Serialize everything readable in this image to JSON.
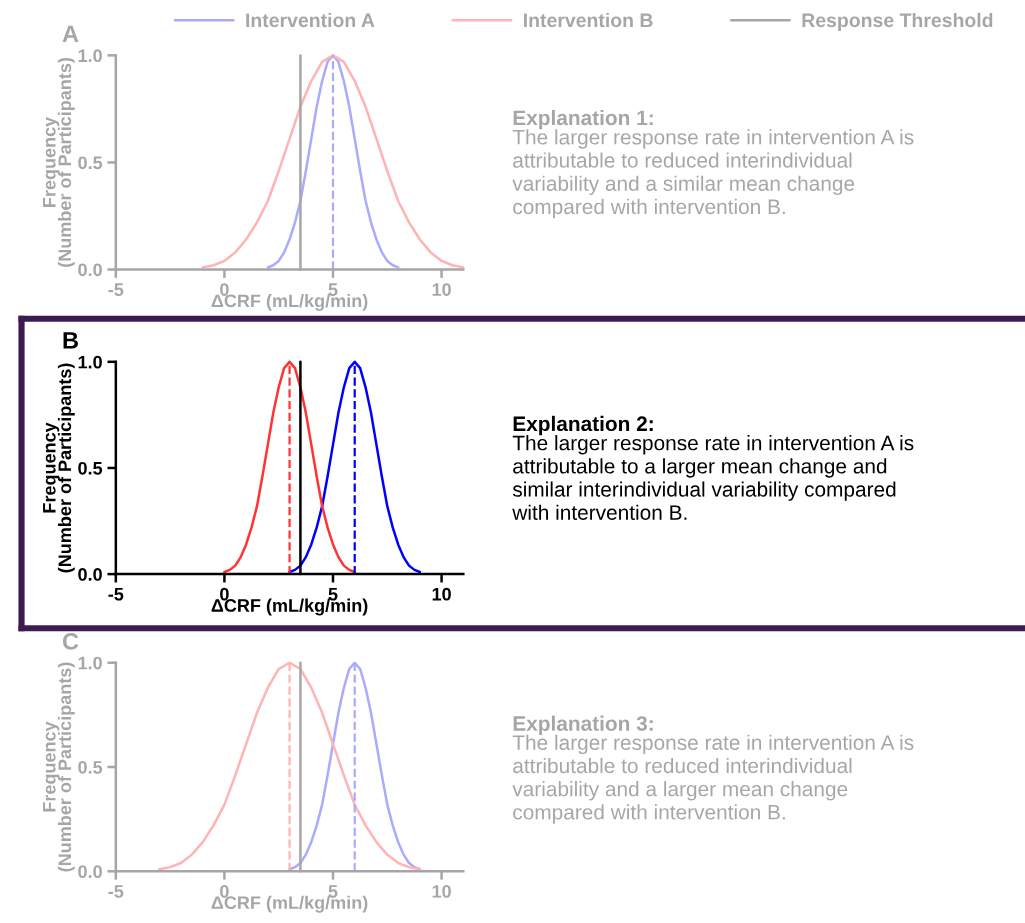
{
  "chart_data": [
    {
      "type": "line",
      "title": "A",
      "xlabel": "ΔCRF (mL/kg/min)",
      "ylabel": "Frequency\n(Number of Participants)",
      "xlim": [
        -5,
        11
      ],
      "xticks": [
        -5,
        0,
        5,
        10
      ],
      "ylim": [
        0,
        1
      ],
      "yticks": [
        {
          "value": 0,
          "label": "0.0"
        },
        {
          "value": 0.5,
          "label": "0.5"
        },
        {
          "value": 1,
          "label": "1.0"
        }
      ],
      "legend": "top",
      "series": [
        {
          "name": "Intervention A",
          "color": "#aaaaff",
          "x": [
            2,
            2.25,
            2.5,
            2.75,
            3,
            3.25,
            3.5,
            3.75,
            4,
            4.25,
            4.5,
            4.75,
            5,
            5.25,
            5.5,
            5.75,
            6,
            6.25,
            6.5,
            6.75,
            7,
            7.25,
            7.5,
            7.75,
            8
          ],
          "values": [
            0.01,
            0.02,
            0.04,
            0.08,
            0.14,
            0.22,
            0.32,
            0.46,
            0.61,
            0.76,
            0.88,
            0.97,
            1,
            0.97,
            0.88,
            0.76,
            0.61,
            0.46,
            0.32,
            0.22,
            0.14,
            0.08,
            0.04,
            0.02,
            0.01
          ]
        },
        {
          "name": "Intervention B",
          "color": "#ffb3b3",
          "x": [
            -1,
            -0.5,
            0,
            0.5,
            1,
            1.5,
            2,
            2.5,
            3,
            3.5,
            4,
            4.5,
            5,
            5.5,
            6,
            6.5,
            7,
            7.5,
            8,
            8.5,
            9,
            9.5,
            10,
            10.5,
            11
          ],
          "values": [
            0.01,
            0.02,
            0.04,
            0.08,
            0.14,
            0.22,
            0.32,
            0.46,
            0.61,
            0.76,
            0.88,
            0.97,
            1,
            0.97,
            0.88,
            0.76,
            0.61,
            0.46,
            0.32,
            0.22,
            0.14,
            0.08,
            0.04,
            0.02,
            0.01
          ]
        }
      ],
      "ref_lines": [
        {
          "axis": "x",
          "value": 3.5,
          "label": "Response Threshold",
          "color": "#a6a6a6",
          "line_style": "solid"
        },
        {
          "axis": "x",
          "value": 5,
          "color": "#aaaaff",
          "line_style": "dashed"
        }
      ],
      "annotations": [
        "Explanation 1:",
        "The larger response rate in intervention A is\nattributable to reduced interindividual\nvariability and a similar mean change\ncompared with intervention B."
      ]
    },
    {
      "type": "line",
      "title": "B",
      "xlabel": "ΔCRF (mL/kg/min)",
      "ylabel": "Frequency\n(Number of Participants)",
      "xlim": [
        -5,
        11
      ],
      "xticks": [
        -5,
        0,
        5,
        10
      ],
      "ylim": [
        0,
        1
      ],
      "yticks": [
        {
          "value": 0,
          "label": "0.0"
        },
        {
          "value": 0.5,
          "label": "0.5"
        },
        {
          "value": 1,
          "label": "1.0"
        }
      ],
      "series": [
        {
          "color": "#0000ff",
          "x": [
            3,
            3.25,
            3.5,
            3.75,
            4,
            4.25,
            4.5,
            4.75,
            5,
            5.25,
            5.5,
            5.75,
            6,
            6.25,
            6.5,
            6.75,
            7,
            7.25,
            7.5,
            7.75,
            8,
            8.25,
            8.5,
            8.75,
            9
          ],
          "values": [
            0.01,
            0.02,
            0.04,
            0.08,
            0.14,
            0.22,
            0.32,
            0.46,
            0.61,
            0.76,
            0.88,
            0.97,
            1,
            0.97,
            0.88,
            0.76,
            0.61,
            0.46,
            0.32,
            0.22,
            0.14,
            0.08,
            0.04,
            0.02,
            0.01
          ]
        },
        {
          "color": "#ff3333",
          "x": [
            0,
            0.25,
            0.5,
            0.75,
            1,
            1.25,
            1.5,
            1.75,
            2,
            2.25,
            2.5,
            2.75,
            3,
            3.25,
            3.5,
            3.75,
            4,
            4.25,
            4.5,
            4.75,
            5,
            5.25,
            5.5,
            5.75,
            6
          ],
          "values": [
            0.01,
            0.02,
            0.04,
            0.08,
            0.14,
            0.22,
            0.32,
            0.46,
            0.61,
            0.76,
            0.88,
            0.97,
            1,
            0.97,
            0.88,
            0.76,
            0.61,
            0.46,
            0.32,
            0.22,
            0.14,
            0.08,
            0.04,
            0.02,
            0.01
          ]
        }
      ],
      "ref_lines": [
        {
          "axis": "x",
          "value": 3.5,
          "color": "#000000",
          "line_style": "solid"
        },
        {
          "axis": "x",
          "value": 6,
          "color": "#0000ff",
          "line_style": "dashed"
        },
        {
          "axis": "x",
          "value": 3,
          "color": "#ff3333",
          "line_style": "dashed"
        }
      ],
      "annotations": [
        "Explanation 2:",
        "The larger response rate in intervention A is\nattributable to a larger mean change and\nsimilar interindividual variability compared\nwith intervention B."
      ]
    },
    {
      "type": "line",
      "title": "C",
      "xlabel": "ΔCRF (mL/kg/min)",
      "ylabel": "Frequency\n(Number of Participants)",
      "xlim": [
        -5,
        11
      ],
      "xticks": [
        -5,
        0,
        5,
        10
      ],
      "ylim": [
        0,
        1
      ],
      "yticks": [
        {
          "value": 0,
          "label": "0.0"
        },
        {
          "value": 0.5,
          "label": "0.5"
        },
        {
          "value": 1,
          "label": "1.0"
        }
      ],
      "series": [
        {
          "color": "#aaaaff",
          "x": [
            3,
            3.25,
            3.5,
            3.75,
            4,
            4.25,
            4.5,
            4.75,
            5,
            5.25,
            5.5,
            5.75,
            6,
            6.25,
            6.5,
            6.75,
            7,
            7.25,
            7.5,
            7.75,
            8,
            8.25,
            8.5,
            8.75,
            9
          ],
          "values": [
            0.01,
            0.02,
            0.04,
            0.08,
            0.14,
            0.22,
            0.32,
            0.46,
            0.61,
            0.76,
            0.88,
            0.97,
            1,
            0.97,
            0.88,
            0.76,
            0.61,
            0.46,
            0.32,
            0.22,
            0.14,
            0.08,
            0.04,
            0.02,
            0.01
          ]
        },
        {
          "color": "#ffb3b3",
          "x": [
            -3,
            -2.5,
            -2,
            -1.5,
            -1,
            -0.5,
            0,
            0.5,
            1,
            1.5,
            2,
            2.5,
            3,
            3.5,
            4,
            4.5,
            5,
            5.5,
            6,
            6.5,
            7,
            7.5,
            8,
            8.5,
            9
          ],
          "values": [
            0.01,
            0.02,
            0.04,
            0.08,
            0.14,
            0.22,
            0.32,
            0.46,
            0.61,
            0.76,
            0.88,
            0.97,
            1,
            0.97,
            0.88,
            0.76,
            0.61,
            0.46,
            0.32,
            0.22,
            0.14,
            0.08,
            0.04,
            0.02,
            0.01
          ]
        }
      ],
      "ref_lines": [
        {
          "axis": "x",
          "value": 3.5,
          "color": "#a6a6a6",
          "line_style": "solid"
        },
        {
          "axis": "x",
          "value": 6,
          "color": "#aaaaff",
          "line_style": "dashed"
        },
        {
          "axis": "x",
          "value": 3,
          "color": "#ffb3b3",
          "line_style": "dashed"
        }
      ],
      "annotations": [
        "Explanation 3:",
        "The larger response rate in intervention A is\nattributable to reduced interindividual\nvariability and a larger mean change\ncompared with intervention B."
      ]
    }
  ]
}
